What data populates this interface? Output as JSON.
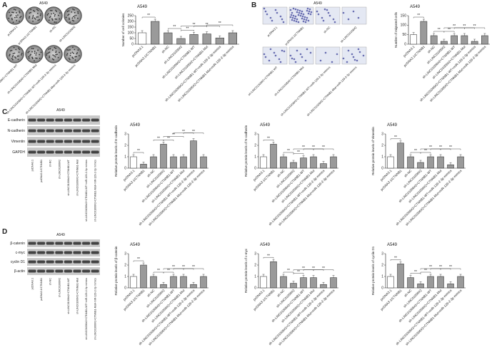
{
  "figure": {
    "panels": [
      {
        "label": "A",
        "header": "A549"
      },
      {
        "label": "B",
        "header": "A549"
      },
      {
        "label": "C",
        "header": "A549",
        "blot_rows": [
          "E-cadherin",
          "N-cadherin",
          "Vimentin",
          "GAPDH"
        ]
      },
      {
        "label": "D",
        "header": "A549",
        "blot_rows": [
          "β-catenin",
          "c-myc",
          "cyclin D1",
          "β-actin"
        ]
      }
    ],
    "conditions": [
      "pcDNA3.1",
      "pcDNA3.1/CTNNB1",
      "sh-NC",
      "sh-LINC01006#2",
      "sh-LINC01006#2+CTNNB1-WT",
      "sh-LINC01006#2+CTNNB1-Mut",
      "sh-LINC01006#2+CTNNB1-WT+miR-129-2-3p mimics",
      "sh-LINC01006#2+CTNNB1-Mut+miR-129-2-3p mimics"
    ]
  },
  "chart_data": [
    {
      "type": "bar",
      "title": "A549",
      "y_label": "Number of cell colonies",
      "categories": [
        "pcDNA3.1",
        "pcDNA3.1/CTNNB1",
        "sh-NC",
        "sh-LINC01006#2",
        "sh-LINC01006#2+CTNNB1-WT",
        "sh-LINC01006#2+CTNNB1-Mut",
        "sh-LINC01006#2+CTNNB1-WT+miR-129-2-3p mimics",
        "sh-LINC01006#2+CTNNB1-Mut+miR-129-2-3p mimics"
      ],
      "values": [
        100,
        200,
        100,
        50,
        85,
        90,
        55,
        100
      ],
      "colors": [
        "#ffffff",
        "#9a9a9a",
        "#9a9a9a",
        "#9a9a9a",
        "#9a9a9a",
        "#9a9a9a",
        "#9a9a9a",
        "#9a9a9a"
      ],
      "ylim": [
        0,
        250
      ],
      "yticks": [
        0,
        50,
        100,
        150,
        200,
        250
      ],
      "annotations": [
        {
          "from": 0,
          "to": 1,
          "label": "**"
        },
        {
          "from": 2,
          "to": 3,
          "label": "**"
        },
        {
          "from": 3,
          "to": 4,
          "label": "**"
        },
        {
          "from": 3,
          "to": 5,
          "label": "**"
        },
        {
          "from": 4,
          "to": 6,
          "label": "**"
        },
        {
          "from": 5,
          "to": 7,
          "label": "**"
        }
      ]
    },
    {
      "type": "bar",
      "title": "A549",
      "y_label": "Number of migrated cells",
      "categories": [
        "pcDNA3.1",
        "pcDNA3.1/CTNNB1",
        "sh-NC",
        "sh-LINC01006#2",
        "sh-LINC01006#2+CTNNB1-WT",
        "sh-LINC01006#2+CTNNB1-Mut",
        "sh-LINC01006#2+CTNNB1-WT+miR-129-2-3p mimics",
        "sh-LINC01006#2+CTNNB1-Mut+miR-129-2-3p mimics"
      ],
      "values": [
        50,
        120,
        45,
        15,
        45,
        45,
        15,
        45
      ],
      "colors": [
        "#ffffff",
        "#9a9a9a",
        "#9a9a9a",
        "#9a9a9a",
        "#9a9a9a",
        "#9a9a9a",
        "#9a9a9a",
        "#9a9a9a"
      ],
      "ylim": [
        0,
        150
      ],
      "yticks": [
        0,
        50,
        100,
        150
      ],
      "annotations": [
        {
          "from": 0,
          "to": 1,
          "label": "**"
        },
        {
          "from": 2,
          "to": 3,
          "label": "**"
        },
        {
          "from": 3,
          "to": 4,
          "label": "**"
        },
        {
          "from": 3,
          "to": 5,
          "label": "**"
        },
        {
          "from": 4,
          "to": 6,
          "label": "**"
        },
        {
          "from": 5,
          "to": 7,
          "label": "**"
        }
      ]
    },
    {
      "type": "bar",
      "title": "A549",
      "y_label": "Relative protein levels of E-cadherin",
      "categories": [
        "pcDNA3.1",
        "pcDNA3.1/CTNNB1",
        "sh-NC",
        "sh-LINC01006#2",
        "sh-LINC01006#2+CTNNB1-WT",
        "sh-LINC01006#2+CTNNB1-Mut",
        "sh-LINC01006#2+CTNNB1-WT+miR-129-2-3p mimics",
        "sh-LINC01006#2+CTNNB1-Mut+miR-129-2-3p mimics"
      ],
      "values": [
        1.0,
        0.35,
        1.0,
        2.1,
        1.0,
        1.0,
        2.4,
        1.0
      ],
      "colors": [
        "#ffffff",
        "#9a9a9a",
        "#9a9a9a",
        "#9a9a9a",
        "#9a9a9a",
        "#9a9a9a",
        "#9a9a9a",
        "#9a9a9a"
      ],
      "ylim": [
        0,
        3
      ],
      "yticks": [
        0,
        1,
        2,
        3
      ],
      "annotations": [
        {
          "from": 0,
          "to": 1,
          "label": "**"
        },
        {
          "from": 2,
          "to": 3,
          "label": "**"
        },
        {
          "from": 3,
          "to": 4,
          "label": "**"
        },
        {
          "from": 3,
          "to": 5,
          "label": "**"
        },
        {
          "from": 4,
          "to": 6,
          "label": "**"
        },
        {
          "from": 5,
          "to": 7,
          "label": "**"
        }
      ]
    },
    {
      "type": "bar",
      "title": "A549",
      "y_label": "Relative protein levels of N-cadherin",
      "categories": [
        "pcDNA3.1",
        "pcDNA3.1/CTNNB1",
        "sh-NC",
        "sh-LINC01006#2",
        "sh-LINC01006#2+CTNNB1-WT",
        "sh-LINC01006#2+CTNNB1-Mut",
        "sh-LINC01006#2+CTNNB1-WT+miR-129-2-3p mimics",
        "sh-LINC01006#2+CTNNB1-Mut+miR-129-2-3p mimics"
      ],
      "values": [
        1.0,
        2.1,
        1.0,
        0.5,
        0.9,
        1.0,
        0.4,
        1.0
      ],
      "colors": [
        "#ffffff",
        "#9a9a9a",
        "#9a9a9a",
        "#9a9a9a",
        "#9a9a9a",
        "#9a9a9a",
        "#9a9a9a",
        "#9a9a9a"
      ],
      "ylim": [
        0,
        3
      ],
      "yticks": [
        0,
        1,
        2,
        3
      ],
      "annotations": [
        {
          "from": 0,
          "to": 1,
          "label": "**"
        },
        {
          "from": 2,
          "to": 3,
          "label": "**"
        },
        {
          "from": 3,
          "to": 4,
          "label": "**"
        },
        {
          "from": 3,
          "to": 5,
          "label": "**"
        },
        {
          "from": 4,
          "to": 6,
          "label": "**"
        },
        {
          "from": 5,
          "to": 7,
          "label": "**"
        }
      ]
    },
    {
      "type": "bar",
      "title": "A549",
      "y_label": "Relative protein levels of Vimentin",
      "categories": [
        "pcDNA3.1",
        "pcDNA3.1/CTNNB1",
        "sh-NC",
        "sh-LINC01006#2",
        "sh-LINC01006#2+CTNNB1-WT",
        "sh-LINC01006#2+CTNNB1-Mut",
        "sh-LINC01006#2+CTNNB1-WT+miR-129-2-3p mimics",
        "sh-LINC01006#2+CTNNB1-Mut+miR-129-2-3p mimics"
      ],
      "values": [
        1.0,
        2.2,
        1.0,
        0.5,
        1.0,
        1.0,
        0.3,
        1.0
      ],
      "colors": [
        "#ffffff",
        "#9a9a9a",
        "#9a9a9a",
        "#9a9a9a",
        "#9a9a9a",
        "#9a9a9a",
        "#9a9a9a",
        "#9a9a9a"
      ],
      "ylim": [
        0,
        3
      ],
      "yticks": [
        0,
        1,
        2,
        3
      ],
      "annotations": [
        {
          "from": 0,
          "to": 1,
          "label": "**"
        },
        {
          "from": 2,
          "to": 3,
          "label": "**"
        },
        {
          "from": 3,
          "to": 4,
          "label": "**"
        },
        {
          "from": 3,
          "to": 5,
          "label": "**"
        },
        {
          "from": 4,
          "to": 6,
          "label": "**"
        },
        {
          "from": 5,
          "to": 7,
          "label": "**"
        }
      ]
    },
    {
      "type": "bar",
      "title": "A549",
      "y_label": "Relative protein levels of β-catenin",
      "categories": [
        "pcDNA3.1",
        "pcDNA3.1/CTNNB1",
        "sh-NC",
        "sh-LINC01006#2",
        "sh-LINC01006#2+CTNNB1-WT",
        "sh-LINC01006#2+CTNNB1-Mut",
        "sh-LINC01006#2+CTNNB1-WT+miR-129-2-3p mimics",
        "sh-LINC01006#2+CTNNB1-Mut+miR-129-2-3p mimics"
      ],
      "values": [
        1.0,
        2.0,
        1.0,
        0.3,
        1.0,
        1.0,
        0.3,
        1.0
      ],
      "colors": [
        "#ffffff",
        "#9a9a9a",
        "#9a9a9a",
        "#9a9a9a",
        "#9a9a9a",
        "#9a9a9a",
        "#9a9a9a",
        "#9a9a9a"
      ],
      "ylim": [
        0,
        3
      ],
      "yticks": [
        0,
        1,
        2,
        3
      ],
      "annotations": [
        {
          "from": 0,
          "to": 1,
          "label": "**"
        },
        {
          "from": 2,
          "to": 3,
          "label": "**"
        },
        {
          "from": 3,
          "to": 4,
          "label": "**"
        },
        {
          "from": 3,
          "to": 5,
          "label": "**"
        },
        {
          "from": 4,
          "to": 6,
          "label": "**"
        },
        {
          "from": 5,
          "to": 7,
          "label": "**"
        }
      ]
    },
    {
      "type": "bar",
      "title": "A549",
      "y_label": "Relative protein levels of c-myc",
      "categories": [
        "pcDNA3.1",
        "pcDNA3.1/CTNNB1",
        "sh-NC",
        "sh-LINC01006#2",
        "sh-LINC01006#2+CTNNB1-WT",
        "sh-LINC01006#2+CTNNB1-Mut",
        "sh-LINC01006#2+CTNNB1-WT+miR-129-2-3p mimics",
        "sh-LINC01006#2+CTNNB1-Mut+miR-129-2-3p mimics"
      ],
      "values": [
        1.0,
        2.3,
        1.0,
        0.4,
        0.9,
        0.9,
        0.3,
        0.9
      ],
      "colors": [
        "#ffffff",
        "#9a9a9a",
        "#9a9a9a",
        "#9a9a9a",
        "#9a9a9a",
        "#9a9a9a",
        "#9a9a9a",
        "#9a9a9a"
      ],
      "ylim": [
        0,
        3
      ],
      "yticks": [
        0,
        1,
        2,
        3
      ],
      "annotations": [
        {
          "from": 0,
          "to": 1,
          "label": "**"
        },
        {
          "from": 2,
          "to": 3,
          "label": "**"
        },
        {
          "from": 3,
          "to": 4,
          "label": "**"
        },
        {
          "from": 3,
          "to": 5,
          "label": "**"
        },
        {
          "from": 4,
          "to": 6,
          "label": "**"
        },
        {
          "from": 5,
          "to": 7,
          "label": "**"
        }
      ]
    },
    {
      "type": "bar",
      "title": "A549",
      "y_label": "Relative protein levels of cyclin D1",
      "categories": [
        "pcDNA3.1",
        "pcDNA3.1/CTNNB1",
        "sh-NC",
        "sh-LINC01006#2",
        "sh-LINC01006#2+CTNNB1-WT",
        "sh-LINC01006#2+CTNNB1-Mut",
        "sh-LINC01006#2+CTNNB1-WT+miR-129-2-3p mimics",
        "sh-LINC01006#2+CTNNB1-Mut+miR-129-2-3p mimics"
      ],
      "values": [
        1.0,
        2.1,
        0.9,
        0.35,
        1.0,
        1.0,
        0.35,
        1.0
      ],
      "colors": [
        "#ffffff",
        "#9a9a9a",
        "#9a9a9a",
        "#9a9a9a",
        "#9a9a9a",
        "#9a9a9a",
        "#9a9a9a",
        "#9a9a9a"
      ],
      "ylim": [
        0,
        3
      ],
      "yticks": [
        0,
        1,
        2,
        3
      ],
      "annotations": [
        {
          "from": 0,
          "to": 1,
          "label": "**"
        },
        {
          "from": 2,
          "to": 3,
          "label": "**"
        },
        {
          "from": 3,
          "to": 4,
          "label": "**"
        },
        {
          "from": 3,
          "to": 5,
          "label": "**"
        },
        {
          "from": 4,
          "to": 6,
          "label": "**"
        },
        {
          "from": 5,
          "to": 7,
          "label": "**"
        }
      ]
    }
  ]
}
